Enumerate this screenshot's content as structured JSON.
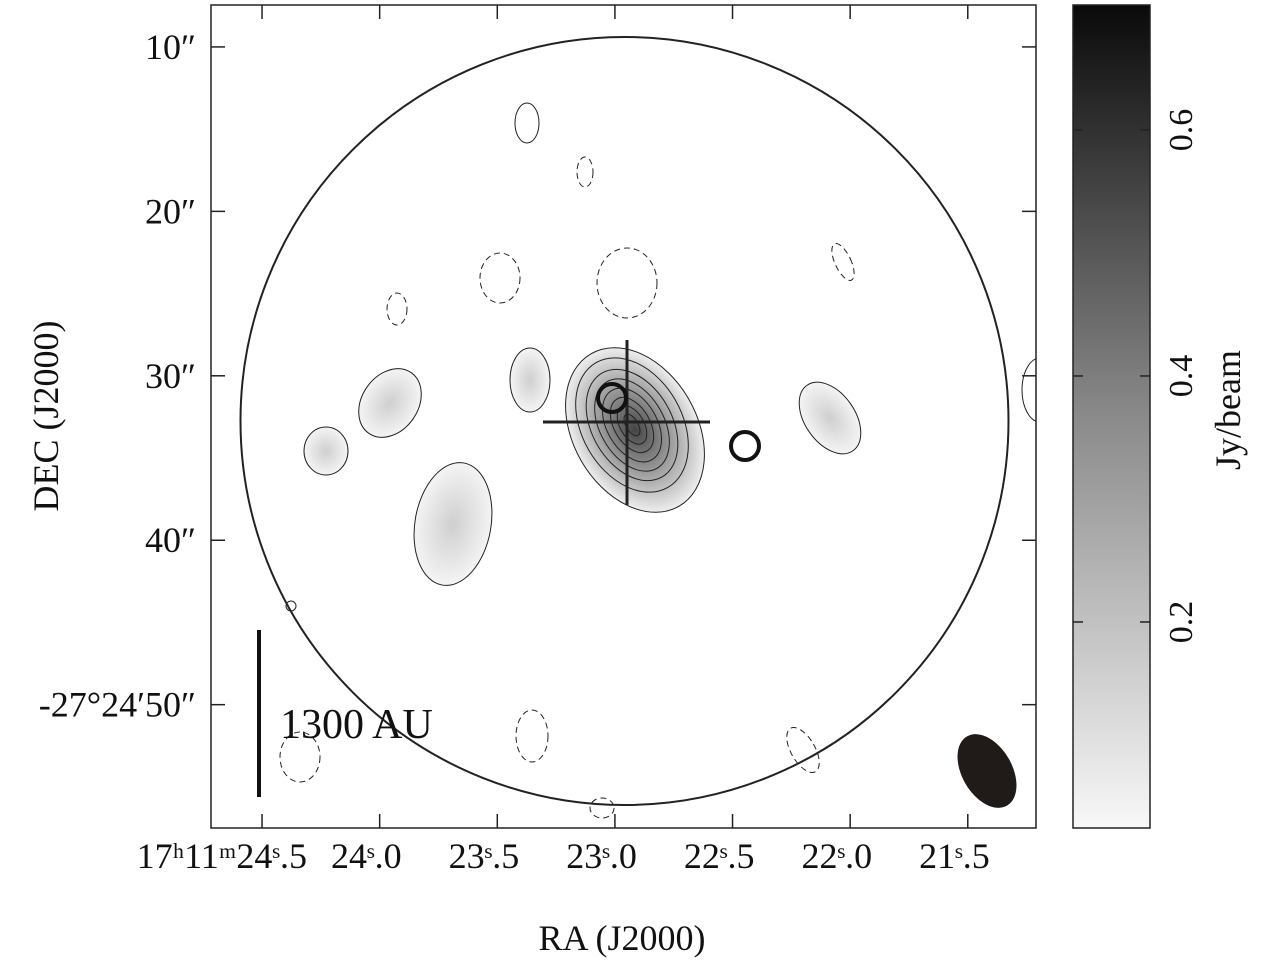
{
  "chart_data": {
    "type": "image",
    "x_label": "RA (J2000)",
    "y_label": "DEC (J2000)",
    "xlim": [
      24.717,
      21.21
    ],
    "xticks": [
      {
        "value": 24.5,
        "label": "17ʰ11ᵐ24ˢ.5"
      },
      {
        "value": 24.0,
        "label": "24ˢ.0"
      },
      {
        "value": 23.5,
        "label": "23ˢ.5"
      },
      {
        "value": 23.0,
        "label": "23ˢ.0"
      },
      {
        "value": 22.5,
        "label": "22ˢ.5"
      },
      {
        "value": 22.0,
        "label": "22ˢ.0"
      },
      {
        "value": 21.5,
        "label": "21ˢ.5"
      }
    ],
    "ylim": [
      7.45,
      57.5
    ],
    "yticks": [
      {
        "value": 10,
        "label": "10″"
      },
      {
        "value": 20,
        "label": "20″"
      },
      {
        "value": 30,
        "label": "30″"
      },
      {
        "value": 40,
        "label": "40″"
      },
      {
        "value": 50,
        "label": "-27°24′50″"
      }
    ],
    "scale_bar_label": "1300 AU",
    "colorbar": {
      "label": "Jy/beam",
      "lim": [
        0.0325,
        0.7016
      ],
      "ticks": [
        0.2,
        0.4,
        0.6
      ]
    }
  }
}
